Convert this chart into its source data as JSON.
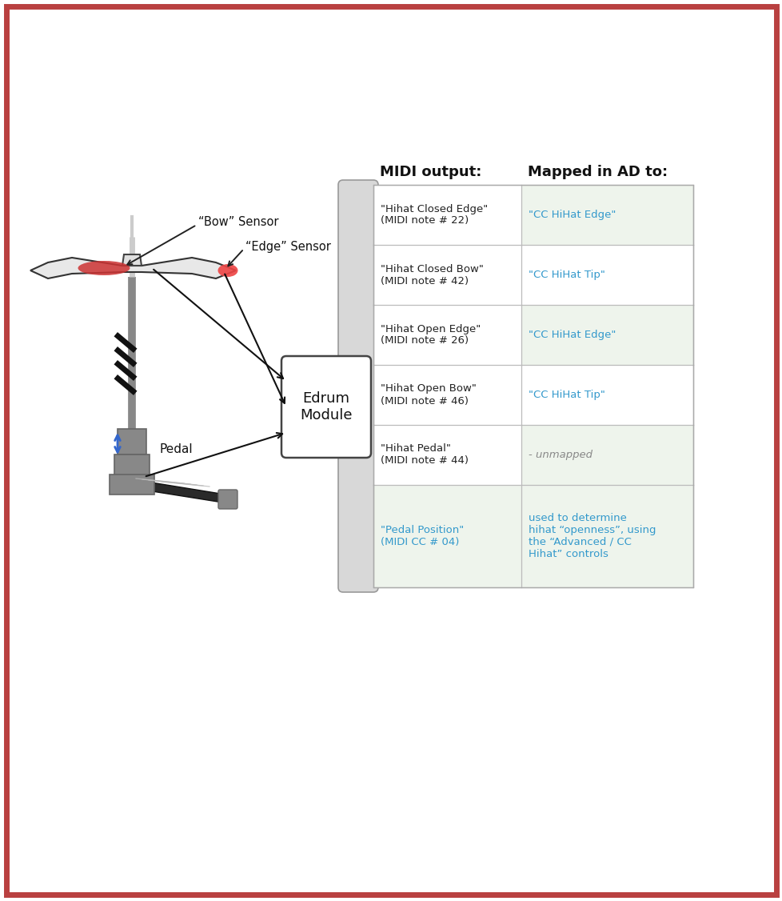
{
  "bg_color": "#ffffff",
  "border_color": "#b94040",
  "border_width": 5,
  "table_header_midi": "MIDI output:",
  "table_header_ad": "Mapped in AD to:",
  "table_rows": [
    {
      "midi_text": "\"Hihat Closed Edge\"\n(MIDI note # 22)",
      "ad_text": "\"CC HiHat Edge\"",
      "ad_color": "#3399cc",
      "midi_color": "#222222",
      "row_bg_left": "#ffffff",
      "row_bg_right": "#eef4ec"
    },
    {
      "midi_text": "\"Hihat Closed Bow\"\n(MIDI note # 42)",
      "ad_text": "\"CC HiHat Tip\"",
      "ad_color": "#3399cc",
      "midi_color": "#222222",
      "row_bg_left": "#ffffff",
      "row_bg_right": "#ffffff"
    },
    {
      "midi_text": "\"Hihat Open Edge\"\n(MIDI note # 26)",
      "ad_text": "\"CC HiHat Edge\"",
      "ad_color": "#3399cc",
      "midi_color": "#222222",
      "row_bg_left": "#ffffff",
      "row_bg_right": "#eef4ec"
    },
    {
      "midi_text": "\"Hihat Open Bow\"\n(MIDI note # 46)",
      "ad_text": "\"CC HiHat Tip\"",
      "ad_color": "#3399cc",
      "midi_color": "#222222",
      "row_bg_left": "#ffffff",
      "row_bg_right": "#ffffff"
    },
    {
      "midi_text": "\"Hihat Pedal\"\n(MIDI note # 44)",
      "ad_text": "- unmapped",
      "ad_color": "#888888",
      "midi_color": "#222222",
      "row_bg_left": "#ffffff",
      "row_bg_right": "#eef4ec",
      "ad_italic": true
    },
    {
      "midi_text": "\"Pedal Position\"\n(MIDI CC # 04)",
      "ad_text": "used to determine\nhihat “openness”, using\nthe “Advanced / CC\nHihat” controls",
      "ad_color": "#3399cc",
      "midi_color": "#3399cc",
      "row_bg_left": "#eef4ec",
      "row_bg_right": "#eef4ec"
    }
  ],
  "label_bow": "“Bow” Sensor",
  "label_edge": "“Edge” Sensor",
  "label_pedal": "Pedal",
  "label_module": "Edrum\nModule"
}
